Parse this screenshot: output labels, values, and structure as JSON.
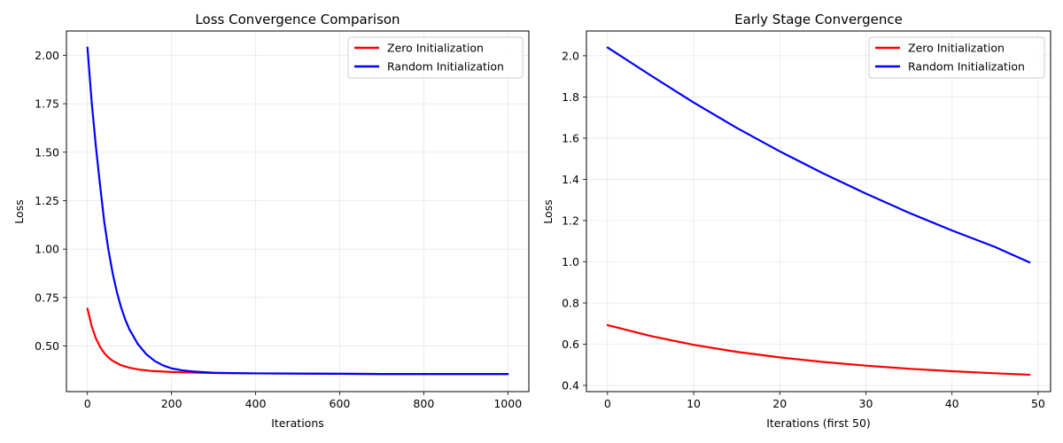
{
  "chart_data": [
    {
      "type": "line",
      "title": "Loss Convergence Comparison",
      "xlabel": "Iterations",
      "ylabel": "Loss",
      "xlim": [
        -50,
        1050
      ],
      "ylim": [
        0.265,
        2.125
      ],
      "xticks": [
        0,
        200,
        400,
        600,
        800,
        1000
      ],
      "xtick_labels": [
        "0",
        "200",
        "400",
        "600",
        "800",
        "1000"
      ],
      "yticks": [
        0.5,
        0.75,
        1.0,
        1.25,
        1.5,
        1.75,
        2.0
      ],
      "ytick_labels": [
        "0.50",
        "0.75",
        "1.00",
        "1.25",
        "1.50",
        "1.75",
        "2.00"
      ],
      "grid": true,
      "legend_position": "top-right",
      "series": [
        {
          "name": "Zero Initialization",
          "color": "#ff0000",
          "x": [
            0,
            10,
            20,
            30,
            40,
            50,
            60,
            80,
            100,
            125,
            150,
            175,
            200,
            250,
            300,
            400,
            500,
            600,
            700,
            800,
            900,
            1000
          ],
          "y": [
            0.693,
            0.603,
            0.54,
            0.496,
            0.464,
            0.441,
            0.424,
            0.401,
            0.388,
            0.378,
            0.372,
            0.369,
            0.366,
            0.363,
            0.361,
            0.359,
            0.358,
            0.357,
            0.356,
            0.356,
            0.356,
            0.356
          ]
        },
        {
          "name": "Random Initialization",
          "color": "#0000ff",
          "x": [
            0,
            10,
            20,
            30,
            40,
            50,
            60,
            70,
            80,
            90,
            100,
            120,
            140,
            160,
            180,
            200,
            225,
            250,
            300,
            400,
            500,
            600,
            700,
            800,
            900,
            1000
          ],
          "y": [
            2.04,
            1.76,
            1.53,
            1.33,
            1.14,
            0.995,
            0.875,
            0.778,
            0.7,
            0.636,
            0.585,
            0.51,
            0.458,
            0.423,
            0.4,
            0.385,
            0.375,
            0.369,
            0.362,
            0.359,
            0.358,
            0.357,
            0.356,
            0.356,
            0.356,
            0.356
          ]
        }
      ]
    },
    {
      "type": "line",
      "title": "Early Stage Convergence",
      "xlabel": "Iterations (first 50)",
      "ylabel": "Loss",
      "xlim": [
        -2.45,
        51.45
      ],
      "ylim": [
        0.37,
        2.12
      ],
      "xticks": [
        0,
        10,
        20,
        30,
        40,
        50
      ],
      "xtick_labels": [
        "0",
        "10",
        "20",
        "30",
        "40",
        "50"
      ],
      "yticks": [
        0.4,
        0.6,
        0.8,
        1.0,
        1.2,
        1.4,
        1.6,
        1.8,
        2.0
      ],
      "ytick_labels": [
        "0.4",
        "0.6",
        "0.8",
        "1.0",
        "1.2",
        "1.4",
        "1.6",
        "1.8",
        "2.0"
      ],
      "grid": true,
      "legend_position": "top-right",
      "series": [
        {
          "name": "Zero Initialization",
          "color": "#ff0000",
          "x": [
            0,
            5,
            10,
            15,
            20,
            25,
            30,
            35,
            40,
            45,
            49
          ],
          "y": [
            0.693,
            0.64,
            0.597,
            0.563,
            0.536,
            0.514,
            0.496,
            0.481,
            0.469,
            0.459,
            0.452
          ]
        },
        {
          "name": "Random Initialization",
          "color": "#0000ff",
          "x": [
            0,
            5,
            10,
            15,
            20,
            25,
            30,
            35,
            40,
            45,
            49
          ],
          "y": [
            2.04,
            1.905,
            1.773,
            1.65,
            1.536,
            1.43,
            1.331,
            1.238,
            1.152,
            1.072,
            0.997
          ]
        }
      ]
    }
  ]
}
